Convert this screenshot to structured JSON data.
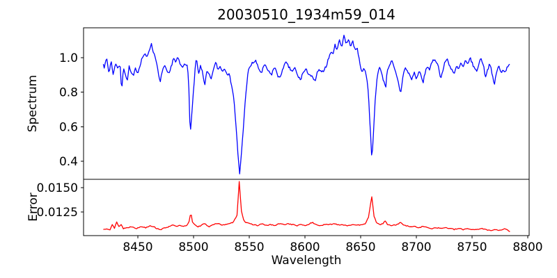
{
  "title": "20030510_1934m59_014",
  "colors": {
    "spectrum_line": "#0000ff",
    "error_line": "#ff0000",
    "spine": "#000000",
    "background": "#ffffff",
    "text": "#000000"
  },
  "axes": {
    "xlabel": "Wavelength",
    "xlim": [
      8401.25,
      8801.25
    ],
    "x_ticks": [
      8450,
      8500,
      8550,
      8600,
      8650,
      8700,
      8750,
      8800
    ],
    "top_panel": {
      "ylabel": "Spectrum",
      "ylim": [
        0.296,
        1.172
      ],
      "y_ticks": [
        1.0,
        0.8,
        0.6,
        0.4
      ],
      "y_tick_labels": [
        "1.0",
        "0.8",
        "0.6",
        "0.4"
      ]
    },
    "bottom_panel": {
      "ylabel": "Error",
      "ylim": [
        0.01007,
        0.01586
      ],
      "y_ticks": [
        0.015,
        0.0125
      ],
      "y_tick_labels": [
        "0.0150",
        "0.0125"
      ]
    }
  },
  "chart_data": [
    {
      "type": "line",
      "name": "spectrum",
      "panel": "top",
      "color": "#0000ff",
      "noise": 0.008,
      "noise_seed": 7,
      "sample_step": 0.8,
      "x": [
        8419,
        8420,
        8422,
        8424,
        8426,
        8428,
        8430,
        8432,
        8434,
        8435.5,
        8437,
        8439,
        8440.5,
        8442,
        8444,
        8446,
        8448,
        8450,
        8452,
        8454,
        8456,
        8458,
        8460,
        8462,
        8464,
        8466,
        8468,
        8470,
        8472,
        8474,
        8476,
        8478,
        8480,
        8482,
        8484,
        8486,
        8488,
        8490,
        8492,
        8494,
        8495.5,
        8497,
        8499,
        8501,
        8502.5,
        8504.5,
        8506,
        8508,
        8510,
        8512,
        8514,
        8516,
        8518,
        8520,
        8522,
        8524,
        8526,
        8528,
        8530,
        8532,
        8534,
        8536,
        8538,
        8540,
        8541.5,
        8543,
        8545,
        8547,
        8549,
        8551,
        8553,
        8556,
        8558,
        8561,
        8563,
        8565,
        8567,
        8570,
        8572,
        8574,
        8576,
        8578,
        8580,
        8583,
        8585,
        8587,
        8589,
        8591,
        8593,
        8596,
        8598,
        8601,
        8603,
        8606,
        8609,
        8611,
        8613,
        8615,
        8617,
        8619,
        8621,
        8623,
        8625,
        8627,
        8629,
        8631,
        8633,
        8635,
        8637,
        8639,
        8641,
        8643,
        8645,
        8647,
        8649,
        8651,
        8653,
        8655,
        8657,
        8658.5,
        8660,
        8661.5,
        8663,
        8665,
        8667,
        8669,
        8671,
        8672.5,
        8674,
        8676,
        8678,
        8680,
        8682,
        8684,
        8686,
        8688,
        8690,
        8692,
        8694,
        8696,
        8698,
        8700,
        8702,
        8704,
        8706,
        8708,
        8710,
        8712,
        8714,
        8716,
        8718,
        8720,
        8722,
        8724,
        8726,
        8728,
        8730,
        8732,
        8734,
        8736,
        8738,
        8740,
        8742,
        8744,
        8746,
        8748,
        8750,
        8752,
        8754,
        8756,
        8758,
        8760,
        8762,
        8764,
        8766,
        8768,
        8770,
        8772,
        8774,
        8776,
        8778,
        8780,
        8782,
        8784
      ],
      "y": [
        0.97,
        0.94,
        1.0,
        0.91,
        0.98,
        0.9,
        0.97,
        0.94,
        0.96,
        0.8,
        0.95,
        0.9,
        0.86,
        0.95,
        0.91,
        0.89,
        0.94,
        0.91,
        0.96,
        1.0,
        1.02,
        1.0,
        1.04,
        1.08,
        1.03,
        1.0,
        0.92,
        0.85,
        0.93,
        0.95,
        0.92,
        0.9,
        0.95,
        1.0,
        0.97,
        1.0,
        0.96,
        0.94,
        0.97,
        0.96,
        0.88,
        0.55,
        0.72,
        0.9,
        1.0,
        0.9,
        0.95,
        0.92,
        0.84,
        0.92,
        0.9,
        0.87,
        0.94,
        0.97,
        0.93,
        0.95,
        0.92,
        0.94,
        0.91,
        0.9,
        0.85,
        0.77,
        0.62,
        0.42,
        0.32,
        0.45,
        0.62,
        0.8,
        0.92,
        0.95,
        0.97,
        0.98,
        0.94,
        0.91,
        0.95,
        0.95,
        0.92,
        0.9,
        0.94,
        0.93,
        0.89,
        0.88,
        0.94,
        0.97,
        0.95,
        0.93,
        0.92,
        0.94,
        0.9,
        0.87,
        0.91,
        0.93,
        0.91,
        0.89,
        0.86,
        0.91,
        0.93,
        0.91,
        0.93,
        0.95,
        0.99,
        1.03,
        1.02,
        1.07,
        1.05,
        1.1,
        1.06,
        1.13,
        1.08,
        1.1,
        1.07,
        1.09,
        1.04,
        1.06,
        0.97,
        0.92,
        0.94,
        0.9,
        0.8,
        0.6,
        0.42,
        0.55,
        0.75,
        0.9,
        0.95,
        0.9,
        0.86,
        0.83,
        0.93,
        0.96,
        0.98,
        0.94,
        0.9,
        0.85,
        0.79,
        0.9,
        0.94,
        0.92,
        0.9,
        0.87,
        0.92,
        0.87,
        0.92,
        0.9,
        0.85,
        0.92,
        0.95,
        0.93,
        0.97,
        0.99,
        0.98,
        0.94,
        0.88,
        0.93,
        0.98,
        0.99,
        0.95,
        0.93,
        0.9,
        0.95,
        0.93,
        0.97,
        0.94,
        0.98,
        0.96,
        1.0,
        0.97,
        0.94,
        0.92,
        0.96,
        1.0,
        0.96,
        0.89,
        0.93,
        0.97,
        0.9,
        0.84,
        0.92,
        0.95,
        0.91,
        0.93,
        0.92,
        0.95,
        0.97
      ]
    },
    {
      "type": "line",
      "name": "error",
      "panel": "bottom",
      "color": "#ff0000",
      "noise": 5e-05,
      "noise_seed": 13,
      "sample_step": 1.0,
      "x": [
        8419,
        8422,
        8425,
        8427,
        8429,
        8431,
        8433,
        8435,
        8437,
        8441,
        8445,
        8449,
        8453,
        8457,
        8461,
        8464,
        8467,
        8471,
        8475,
        8478,
        8481,
        8484,
        8487,
        8491,
        8494,
        8496,
        8497.5,
        8499,
        8501,
        8504,
        8507,
        8509,
        8511,
        8514,
        8517,
        8521,
        8525,
        8529,
        8533,
        8536,
        8539,
        8541,
        8543,
        8545,
        8547,
        8550,
        8554,
        8558,
        8561,
        8565,
        8569,
        8573,
        8577,
        8581,
        8585,
        8589,
        8593,
        8597,
        8601,
        8604,
        8607,
        8610,
        8614,
        8618,
        8622,
        8626,
        8630,
        8634,
        8638,
        8642,
        8646,
        8650,
        8654,
        8657,
        8660,
        8662,
        8664,
        8667,
        8670,
        8672,
        8674,
        8678,
        8682,
        8686,
        8690,
        8694,
        8698,
        8702,
        8706,
        8710,
        8714,
        8718,
        8722,
        8726,
        8730,
        8734,
        8738,
        8742,
        8746,
        8750,
        8754,
        8758,
        8762,
        8766,
        8770,
        8774,
        8778,
        8780,
        8782,
        8784
      ],
      "y": [
        0.0107,
        0.0108,
        0.0107,
        0.0112,
        0.0108,
        0.0115,
        0.011,
        0.0112,
        0.0108,
        0.0109,
        0.011,
        0.0108,
        0.011,
        0.0109,
        0.0111,
        0.011,
        0.0108,
        0.0107,
        0.0109,
        0.011,
        0.0112,
        0.011,
        0.0111,
        0.011,
        0.0111,
        0.0115,
        0.0125,
        0.0115,
        0.0112,
        0.011,
        0.0111,
        0.0113,
        0.0112,
        0.011,
        0.0112,
        0.0113,
        0.0112,
        0.0112,
        0.0113,
        0.0115,
        0.0122,
        0.0156,
        0.0126,
        0.0117,
        0.0114,
        0.0113,
        0.0112,
        0.0111,
        0.0113,
        0.0111,
        0.0112,
        0.0111,
        0.0113,
        0.0112,
        0.0113,
        0.0112,
        0.0111,
        0.0112,
        0.0111,
        0.0113,
        0.0114,
        0.0112,
        0.0111,
        0.0112,
        0.0112,
        0.0113,
        0.0112,
        0.0112,
        0.0111,
        0.0112,
        0.0111,
        0.0112,
        0.0113,
        0.0119,
        0.0141,
        0.0121,
        0.0114,
        0.0112,
        0.0113,
        0.0116,
        0.0112,
        0.0111,
        0.0112,
        0.0114,
        0.0111,
        0.011,
        0.011,
        0.0109,
        0.011,
        0.0109,
        0.0108,
        0.0109,
        0.0108,
        0.0109,
        0.0108,
        0.0107,
        0.0108,
        0.0107,
        0.0108,
        0.0107,
        0.0107,
        0.0108,
        0.0107,
        0.0106,
        0.0107,
        0.0106,
        0.0107,
        0.0108,
        0.0106,
        0.0105
      ]
    }
  ]
}
